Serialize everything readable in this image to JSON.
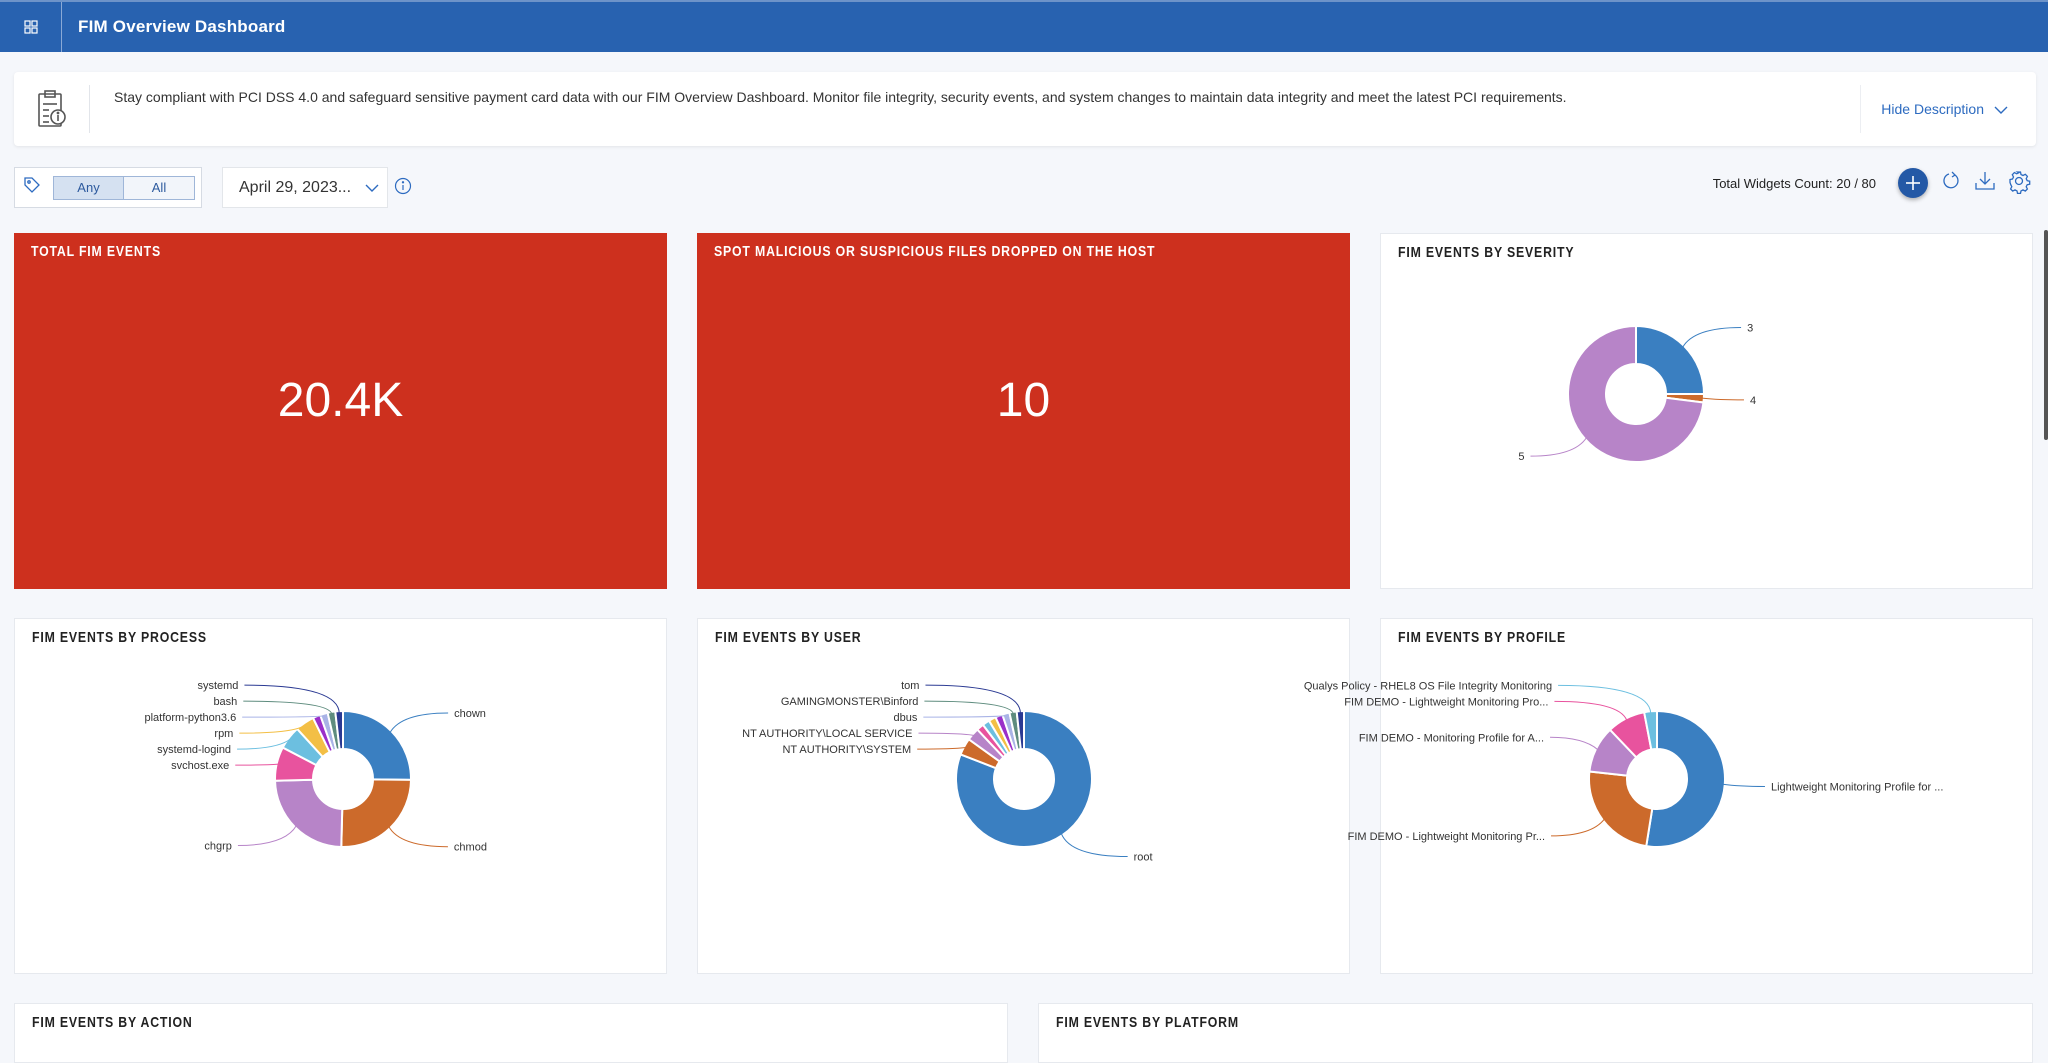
{
  "header": {
    "title": "FIM Overview Dashboard",
    "icon": "dashboard-icon"
  },
  "description": {
    "text": "Stay compliant with PCI DSS 4.0 and safeguard sensitive payment card data with our FIM Overview Dashboard. Monitor file integrity, security events, and system changes to maintain data integrity and meet the latest PCI requirements.",
    "toggle_label": "Hide Description"
  },
  "filters": {
    "tag_any": "Any",
    "tag_all": "All",
    "date": "April 29, 2023..."
  },
  "toolbar": {
    "widgets_count": "Total Widgets Count: 20 / 80"
  },
  "colors": {
    "header": "#2862b0",
    "kpi": "#cd301e",
    "accent": "#2459a6"
  },
  "widgets": {
    "total": {
      "title": "TOTAL FIM EVENTS",
      "value": "20.4K"
    },
    "malicious": {
      "title": "SPOT MALICIOUS OR SUSPICIOUS FILES DROPPED ON THE HOST",
      "value": "10"
    },
    "severity": {
      "title": "FIM EVENTS BY SEVERITY"
    },
    "process": {
      "title": "FIM EVENTS BY PROCESS"
    },
    "user": {
      "title": "FIM EVENTS BY USER"
    },
    "profile": {
      "title": "FIM EVENTS BY PROFILE"
    },
    "action": {
      "title": "FIM EVENTS BY ACTION"
    },
    "platform": {
      "title": "FIM EVENTS BY PLATFORM"
    }
  },
  "chart_data": [
    {
      "id": "severity",
      "type": "pie",
      "donut": true,
      "slices": [
        {
          "label": "3",
          "value": 25,
          "color": "#3a7fc1"
        },
        {
          "label": "4",
          "value": 2,
          "color": "#cc6a2b"
        },
        {
          "label": "5",
          "value": 73,
          "color": "#b784c8"
        }
      ]
    },
    {
      "id": "process",
      "type": "pie",
      "donut": true,
      "slices": [
        {
          "label": "chown",
          "value": 25,
          "color": "#3a7fc1"
        },
        {
          "label": "chmod",
          "value": 25,
          "color": "#cc6a2b"
        },
        {
          "label": "chgrp",
          "value": 24,
          "color": "#b784c8"
        },
        {
          "label": "svchost.exe",
          "value": 8,
          "color": "#e8539e"
        },
        {
          "label": "systemd-logind",
          "value": 5.5,
          "color": "#6cbfe0"
        },
        {
          "label": "rpm",
          "value": 4.5,
          "color": "#f3bf45"
        },
        {
          "label": "",
          "value": 1.8,
          "color": "#9b2fc9"
        },
        {
          "label": "platform-python3.6",
          "value": 1.8,
          "color": "#a9b3e6"
        },
        {
          "label": "bash",
          "value": 1.8,
          "color": "#5e8c7e"
        },
        {
          "label": "systemd",
          "value": 1.8,
          "color": "#2b3a93"
        }
      ]
    },
    {
      "id": "user",
      "type": "pie",
      "donut": true,
      "slices": [
        {
          "label": "root",
          "value": 80,
          "color": "#3a7fc1"
        },
        {
          "label": "NT AUTHORITY\\SYSTEM",
          "value": 4,
          "color": "#cc6a2b"
        },
        {
          "label": "NT AUTHORITY\\LOCAL SERVICE",
          "value": 3,
          "color": "#b784c8"
        },
        {
          "label": "",
          "value": 1.7,
          "color": "#e8539e"
        },
        {
          "label": "",
          "value": 1.7,
          "color": "#6cbfe0"
        },
        {
          "label": "",
          "value": 1.7,
          "color": "#f3bf45"
        },
        {
          "label": "",
          "value": 1.7,
          "color": "#9b2fc9"
        },
        {
          "label": "dbus",
          "value": 1.7,
          "color": "#a9b3e6"
        },
        {
          "label": "GAMINGMONSTER\\Binford",
          "value": 1.7,
          "color": "#5e8c7e"
        },
        {
          "label": "tom",
          "value": 1.7,
          "color": "#2b3a93"
        }
      ]
    },
    {
      "id": "profile",
      "type": "pie",
      "donut": true,
      "slices": [
        {
          "label": "Lightweight Monitoring Profile for ...",
          "value": 52,
          "color": "#3a7fc1"
        },
        {
          "label": "FIM DEMO - Lightweight Monitoring Pr...",
          "value": 24,
          "color": "#cc6a2b"
        },
        {
          "label": "FIM DEMO - Monitoring Profile for A...",
          "value": 11,
          "color": "#b784c8"
        },
        {
          "label": "FIM DEMO - Lightweight Monitoring Pro...",
          "value": 9,
          "color": "#e8539e"
        },
        {
          "label": "Qualys Policy - RHEL8 OS File Integrity Monitoring",
          "value": 3,
          "color": "#6cbfe0"
        }
      ]
    }
  ]
}
